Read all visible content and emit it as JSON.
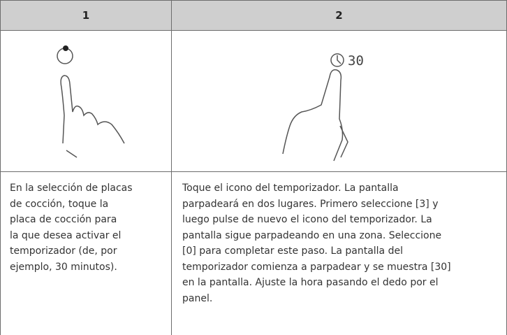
{
  "table": {
    "header": [
      "1",
      "2"
    ],
    "illustration_display": "30",
    "rows": [
      [
        [
          "En la selección de placas",
          "de cocción, toque la",
          "placa de cocción para",
          "la que desea activar el",
          "temporizador (de, por",
          "ejemplo, 30 minutos)."
        ],
        [
          "Toque el icono del temporizador. La pantalla",
          "parpadeará en dos lugares. Primero seleccione [3] y",
          "luego pulse de nuevo el icono del temporizador. La",
          "pantalla sigue parpadeando en una zona. Seleccione",
          "[0] para completar este paso. La pantalla del",
          "temporizador comienza a parpadear y se muestra [30]",
          "en la pantalla. Ajuste la hora pasando el dedo por el",
          "panel."
        ]
      ]
    ]
  }
}
